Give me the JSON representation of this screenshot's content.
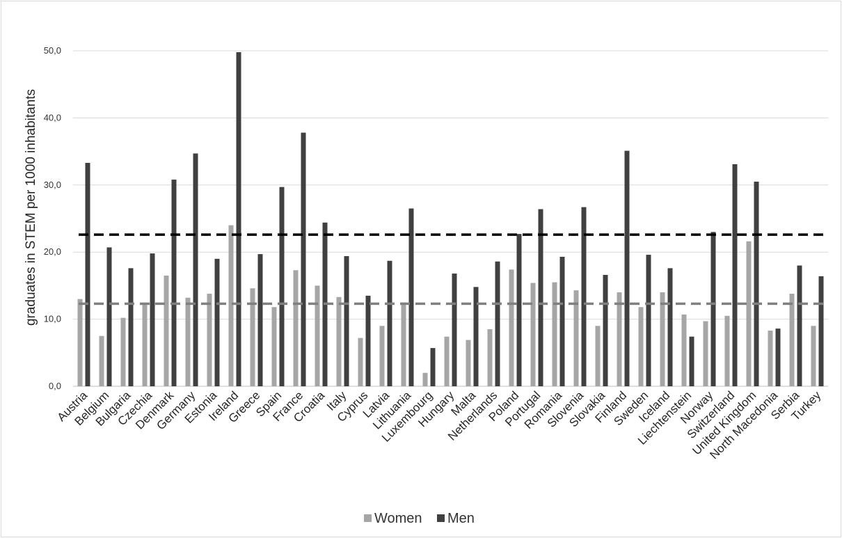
{
  "chart_data": {
    "type": "bar",
    "title": "",
    "xlabel": "",
    "ylabel": "graduates in STEM per 1000 inhabitants",
    "ylim": [
      0,
      50
    ],
    "yticks": [
      "0,0",
      "10,0",
      "20,0",
      "30,0",
      "40,0",
      "50,0"
    ],
    "ytick_values": [
      0,
      10,
      20,
      30,
      40,
      50
    ],
    "grid": true,
    "legend": "bottom",
    "categories": [
      "Austria",
      "Belgium",
      "Bulgaria",
      "Czechia",
      "Denmark",
      "Germany",
      "Estonia",
      "Ireland",
      "Greece",
      "Spain",
      "France",
      "Croatia",
      "Italy",
      "Cyprus",
      "Latvia",
      "Lithuania",
      "Luxembourg",
      "Hungary",
      "Malta",
      "Netherlands",
      "Poland",
      "Portugal",
      "Romania",
      "Slovenia",
      "Slovakia",
      "Finland",
      "Sweden",
      "Iceland",
      "Liechtenstein",
      "Norway",
      "Switzerland",
      "United Kingdom",
      "North Macedonia",
      "Serbia",
      "Turkey"
    ],
    "series": [
      {
        "name": "Women",
        "color": "#a6a6a6",
        "values": [
          13.0,
          7.5,
          10.2,
          12.3,
          16.5,
          13.2,
          13.8,
          24.0,
          14.6,
          11.8,
          17.3,
          15.0,
          13.3,
          7.2,
          9.0,
          12.5,
          2.0,
          7.4,
          6.9,
          8.5,
          17.4,
          15.4,
          15.5,
          14.3,
          9.0,
          14.0,
          11.8,
          14.0,
          10.7,
          9.7,
          10.5,
          21.6,
          8.3,
          13.8,
          9.0
        ]
      },
      {
        "name": "Men",
        "color": "#404040",
        "values": [
          33.3,
          20.7,
          17.6,
          19.8,
          30.8,
          34.7,
          19.0,
          49.8,
          19.7,
          29.7,
          37.8,
          24.4,
          19.4,
          13.5,
          18.7,
          26.5,
          5.7,
          16.8,
          14.8,
          18.6,
          22.7,
          26.4,
          19.3,
          26.7,
          16.6,
          35.1,
          19.6,
          17.6,
          7.4,
          23.0,
          33.1,
          30.5,
          8.6,
          18.0,
          16.4
        ]
      }
    ],
    "reference_lines": [
      {
        "series": "Men",
        "value": 22.6,
        "color": "#000000"
      },
      {
        "series": "Women",
        "value": 12.3,
        "color": "#808080"
      }
    ]
  }
}
